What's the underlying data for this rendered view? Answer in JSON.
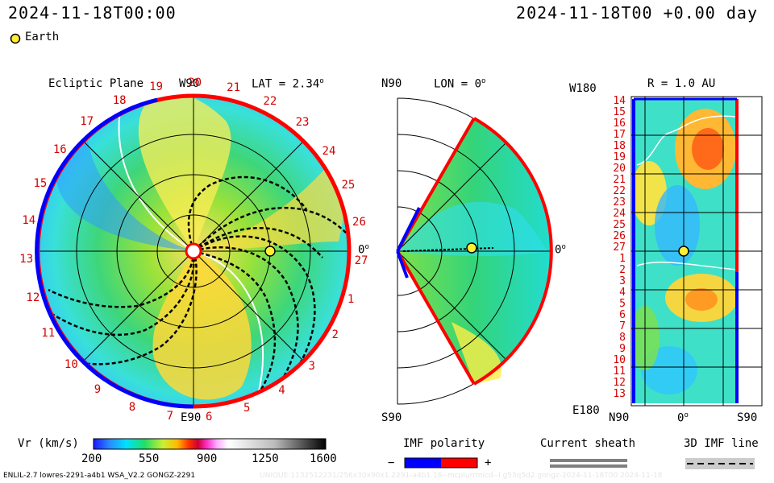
{
  "header": {
    "left_datetime": "2024-11-18T00:00",
    "right_datetime": "2024-11-18T00 +0.00 day"
  },
  "legend": {
    "earth_label": "Earth"
  },
  "colors": {
    "earth": "#ffee33",
    "sector_positive": "#ff0000",
    "sector_negative": "#0000ff",
    "sheath": "#808080",
    "field_line": "#000000"
  },
  "ecliptic_panel": {
    "title": "Ecliptic Plane",
    "top_label": "W90",
    "bottom_label": "E90",
    "lat_label": "LAT = 2.34",
    "degree_mark": "o",
    "right_angle_label": "0",
    "right_angle_degree": "o",
    "carrington_days": [
      "19",
      "20",
      "21",
      "22",
      "23",
      "24",
      "25",
      "26",
      "27",
      "1",
      "2",
      "3",
      "4",
      "5",
      "6",
      "7",
      "8",
      "9",
      "10",
      "11",
      "12",
      "13",
      "14",
      "15",
      "16",
      "17",
      "18"
    ]
  },
  "meridional_panel": {
    "top_label": "N90",
    "bottom_label": "S90",
    "lon_label": "LON = 0",
    "degree_mark": "o",
    "right_label": "0",
    "right_degree": "o"
  },
  "radial_panel": {
    "title": "R = 1.0 AU",
    "top_left_label": "W180",
    "bottom_left_label": "E180",
    "bottom_labels": [
      "N90",
      "0",
      "S90"
    ],
    "bottom_degree": "o",
    "rows": [
      "14",
      "15",
      "16",
      "17",
      "18",
      "19",
      "20",
      "21",
      "22",
      "23",
      "24",
      "25",
      "26",
      "27",
      "1",
      "2",
      "3",
      "4",
      "5",
      "6",
      "7",
      "8",
      "9",
      "10",
      "11",
      "12",
      "13"
    ]
  },
  "colorbar": {
    "label": "Vr (km/s)",
    "ticks": [
      "200",
      "550",
      "900",
      "1250",
      "1600"
    ],
    "min": 200,
    "max": 1600
  },
  "imf_polarity": {
    "title": "IMF polarity",
    "minus": "−",
    "plus": "+"
  },
  "current_sheath": {
    "title": "Current sheath"
  },
  "imf_line": {
    "title": "3D IMF line"
  },
  "footer": {
    "left": "ENLIL-2.7 lowres-2291-a4b1 WSA_V2.2 GONGZ-2291",
    "right": "UNIQUE:1132512231/256x30x90x1.2291-a4b1.16--mcplurrmicd--l.g53q5d2.gongz-2024-11-18T00  2024-11-18"
  }
}
